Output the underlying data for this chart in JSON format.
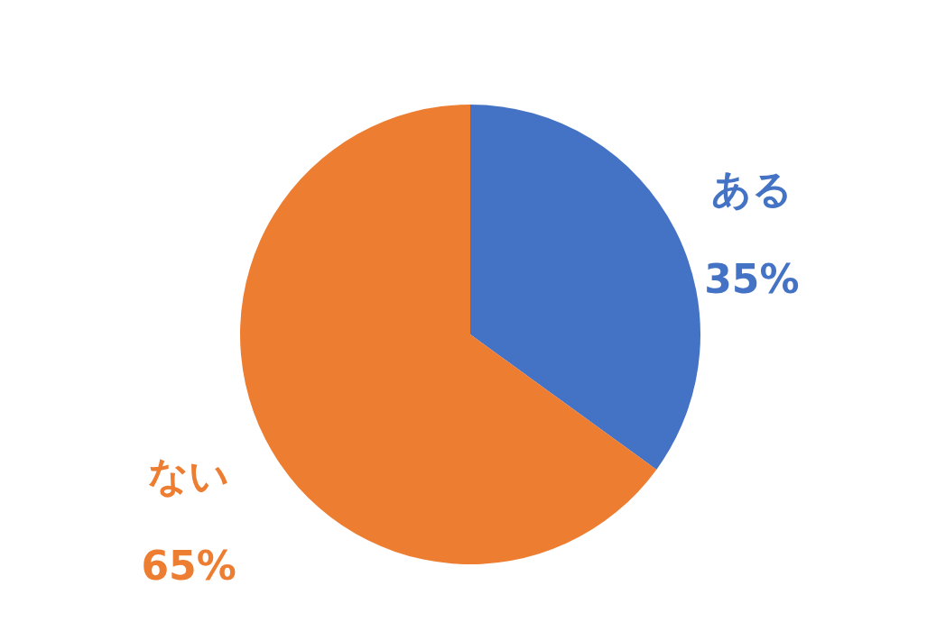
{
  "chart_data": {
    "type": "pie",
    "categories": [
      "ある",
      "ない"
    ],
    "values": [
      35,
      65
    ],
    "colors": [
      "#4472c4",
      "#ed7d31"
    ],
    "value_labels": [
      "35%",
      "65%"
    ]
  }
}
